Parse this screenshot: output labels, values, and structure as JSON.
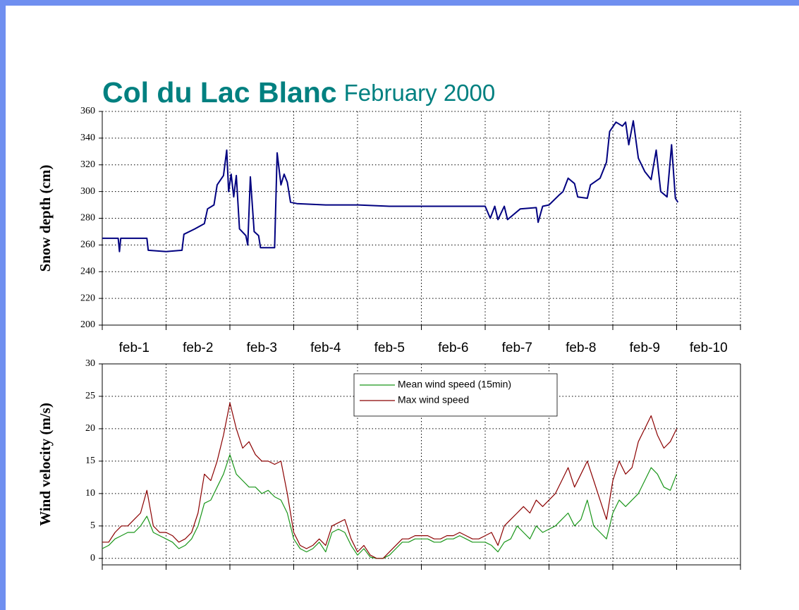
{
  "chart_data": [
    {
      "type": "line",
      "title": "Col du Lac Blanc",
      "subtitle": "February 2000",
      "ylabel": "Snow depth (cm)",
      "categories": [
        "feb-1",
        "feb-2",
        "feb-3",
        "feb-4",
        "feb-5",
        "feb-6",
        "feb-7",
        "feb-8",
        "feb-9",
        "feb-10"
      ],
      "xlim": [
        0,
        10
      ],
      "ylim": [
        200,
        360
      ],
      "yticks": [
        200,
        220,
        240,
        260,
        280,
        300,
        320,
        340,
        360
      ],
      "grid": true,
      "x": [
        0,
        0.25,
        0.27,
        0.29,
        0.7,
        0.72,
        1.0,
        1.25,
        1.28,
        1.45,
        1.6,
        1.65,
        1.75,
        1.8,
        1.9,
        1.95,
        1.98,
        2.02,
        2.06,
        2.1,
        2.15,
        2.25,
        2.28,
        2.32,
        2.38,
        2.45,
        2.48,
        2.7,
        2.74,
        2.8,
        2.85,
        2.9,
        2.95,
        3.05,
        3.5,
        4.0,
        4.5,
        5.0,
        5.5,
        6.0,
        6.08,
        6.15,
        6.2,
        6.3,
        6.35,
        6.55,
        6.8,
        6.83,
        6.9,
        7.0,
        7.15,
        7.22,
        7.3,
        7.4,
        7.45,
        7.6,
        7.65,
        7.8,
        7.9,
        7.95,
        8.05,
        8.15,
        8.2,
        8.25,
        8.32,
        8.4,
        8.5,
        8.6,
        8.68,
        8.75,
        8.85,
        8.92,
        8.98,
        9.02
      ],
      "series": [
        {
          "color": "#000080",
          "values": [
            265,
            265,
            255,
            265,
            265,
            256,
            255,
            256,
            268,
            272,
            276,
            287,
            290,
            305,
            312,
            331,
            300,
            313,
            296,
            312,
            272,
            267,
            260,
            311,
            270,
            267,
            258,
            258,
            329,
            305,
            313,
            307,
            292,
            291,
            290,
            290,
            289,
            289,
            289,
            289,
            280,
            289,
            279,
            289,
            279,
            287,
            288,
            277,
            289,
            290,
            297,
            300,
            310,
            306,
            296,
            295,
            305,
            310,
            322,
            345,
            352,
            349,
            352,
            335,
            353,
            325,
            315,
            309,
            331,
            300,
            296,
            335,
            295,
            292
          ]
        }
      ]
    },
    {
      "type": "line",
      "ylabel": "Wind velocity (m/s)",
      "xlim": [
        0,
        10
      ],
      "ylim": [
        -1,
        30
      ],
      "yticks": [
        0,
        5,
        10,
        15,
        20,
        25,
        30
      ],
      "grid": true,
      "legend": "top-center",
      "x": [
        0,
        0.1,
        0.2,
        0.3,
        0.4,
        0.5,
        0.6,
        0.7,
        0.8,
        0.9,
        1,
        1.1,
        1.2,
        1.3,
        1.4,
        1.5,
        1.6,
        1.7,
        1.8,
        1.9,
        2,
        2.1,
        2.2,
        2.3,
        2.4,
        2.5,
        2.6,
        2.7,
        2.8,
        2.9,
        3,
        3.1,
        3.2,
        3.3,
        3.4,
        3.5,
        3.6,
        3.7,
        3.8,
        3.9,
        4,
        4.1,
        4.2,
        4.3,
        4.4,
        4.5,
        4.6,
        4.7,
        4.8,
        4.9,
        5,
        5.1,
        5.2,
        5.3,
        5.4,
        5.5,
        5.6,
        5.7,
        5.8,
        5.9,
        6,
        6.1,
        6.2,
        6.3,
        6.4,
        6.5,
        6.6,
        6.7,
        6.8,
        6.9,
        7,
        7.1,
        7.2,
        7.3,
        7.4,
        7.5,
        7.6,
        7.7,
        7.8,
        7.9,
        8,
        8.1,
        8.2,
        8.3,
        8.4,
        8.5,
        8.6,
        8.7,
        8.8,
        8.9,
        9
      ],
      "series": [
        {
          "name": "Mean wind speed (15min)",
          "color": "#1a961a",
          "values": [
            1.5,
            2,
            3,
            3.5,
            4,
            4,
            5,
            6.5,
            4,
            3.5,
            3,
            2.5,
            1.5,
            2,
            3,
            5,
            8.5,
            9,
            11,
            13,
            16,
            13,
            12,
            11,
            11,
            10,
            10.5,
            9.5,
            9,
            7,
            3,
            1.5,
            1,
            1.5,
            2.5,
            1,
            4,
            4.5,
            4,
            2,
            0.5,
            1.5,
            0.2,
            0,
            0,
            0.5,
            1.5,
            2.5,
            2.5,
            3,
            3,
            3,
            2.5,
            2.5,
            3,
            3,
            3.5,
            3,
            2.5,
            2.5,
            2.5,
            2,
            1,
            2.5,
            3,
            5,
            4,
            3,
            5,
            4,
            4.5,
            5,
            6,
            7,
            5,
            6,
            9,
            5,
            4,
            3,
            7,
            9,
            8,
            9,
            10,
            12,
            14,
            13,
            11,
            10.5,
            13
          ]
        },
        {
          "name": "Max wind speed",
          "color": "#8b0000",
          "values": [
            2.5,
            2.5,
            4,
            5,
            5,
            6,
            7,
            10.5,
            5,
            4,
            4,
            3.5,
            2.5,
            3,
            4,
            7,
            13,
            12,
            15,
            19,
            24,
            20,
            17,
            18,
            16,
            15,
            15,
            14.5,
            15,
            10,
            4,
            2,
            1.5,
            2,
            3,
            2,
            5,
            5.5,
            6,
            3,
            1,
            2,
            0.5,
            0,
            0,
            1,
            2,
            3,
            3,
            3.5,
            3.5,
            3.5,
            3,
            3,
            3.5,
            3.5,
            4,
            3.5,
            3,
            3,
            3.5,
            4,
            2,
            5,
            6,
            7,
            8,
            7,
            9,
            8,
            9,
            10,
            12,
            14,
            11,
            13,
            15,
            12,
            9,
            6,
            12,
            15,
            13,
            14,
            18,
            20,
            22,
            19,
            17,
            18,
            20
          ]
        }
      ]
    }
  ]
}
